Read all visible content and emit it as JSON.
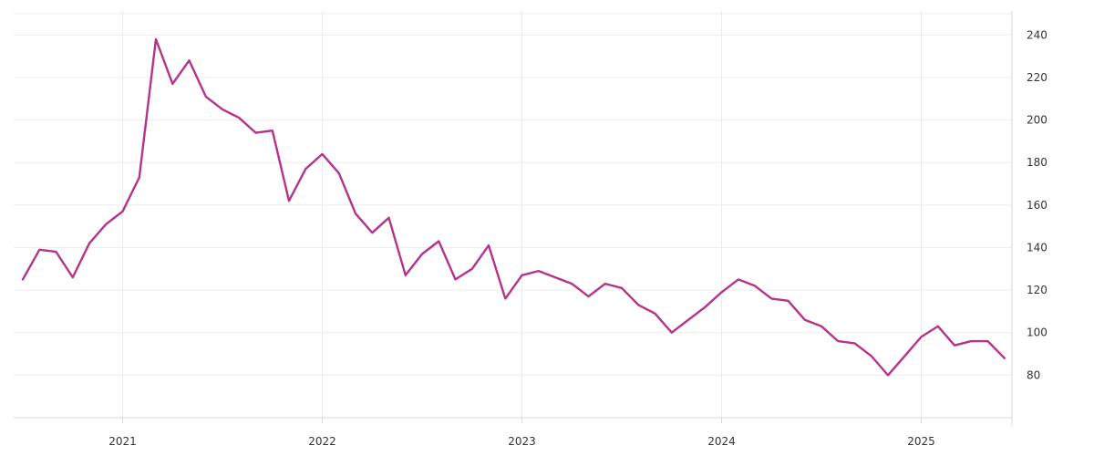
{
  "chart_data": {
    "type": "line",
    "title": "",
    "xlabel": "",
    "ylabel": "",
    "x_ticks": [
      "2021",
      "2022",
      "2023",
      "2024",
      "2025"
    ],
    "y_ticks": [
      80,
      100,
      120,
      140,
      160,
      180,
      200,
      220,
      240
    ],
    "ylim": [
      60,
      250
    ],
    "xlim": [
      "2020-07",
      "2025-06"
    ],
    "grid": true,
    "y_axis_side": "right",
    "colors": {
      "series": "#b5338a",
      "grid": "#ececec"
    },
    "series": [
      {
        "x": [
          "2020-07",
          "2020-08",
          "2020-09",
          "2020-10",
          "2020-11",
          "2020-12",
          "2021-01",
          "2021-02",
          "2021-03",
          "2021-04",
          "2021-05",
          "2021-06",
          "2021-07",
          "2021-08",
          "2021-09",
          "2021-10",
          "2021-11",
          "2021-12",
          "2022-01",
          "2022-02",
          "2022-03",
          "2022-04",
          "2022-05",
          "2022-06",
          "2022-07",
          "2022-08",
          "2022-09",
          "2022-10",
          "2022-11",
          "2022-12",
          "2023-01",
          "2023-02",
          "2023-03",
          "2023-04",
          "2023-05",
          "2023-06",
          "2023-07",
          "2023-08",
          "2023-09",
          "2023-10",
          "2023-11",
          "2023-12",
          "2024-01",
          "2024-02",
          "2024-03",
          "2024-04",
          "2024-05",
          "2024-06",
          "2024-07",
          "2024-08",
          "2024-09",
          "2024-10",
          "2024-11",
          "2024-12",
          "2025-01",
          "2025-02",
          "2025-03",
          "2025-04",
          "2025-05",
          "2025-06"
        ],
        "values": [
          125,
          139,
          138,
          126,
          142,
          151,
          157,
          173,
          238,
          217,
          228,
          211,
          205,
          201,
          194,
          195,
          162,
          177,
          184,
          175,
          156,
          147,
          154,
          127,
          137,
          143,
          125,
          130,
          141,
          116,
          127,
          129,
          126,
          123,
          117,
          123,
          121,
          113,
          109,
          100,
          106,
          112,
          119,
          125,
          122,
          116,
          115,
          106,
          103,
          96,
          95,
          89,
          80,
          89,
          98,
          103,
          94,
          96,
          96,
          88
        ]
      }
    ]
  }
}
